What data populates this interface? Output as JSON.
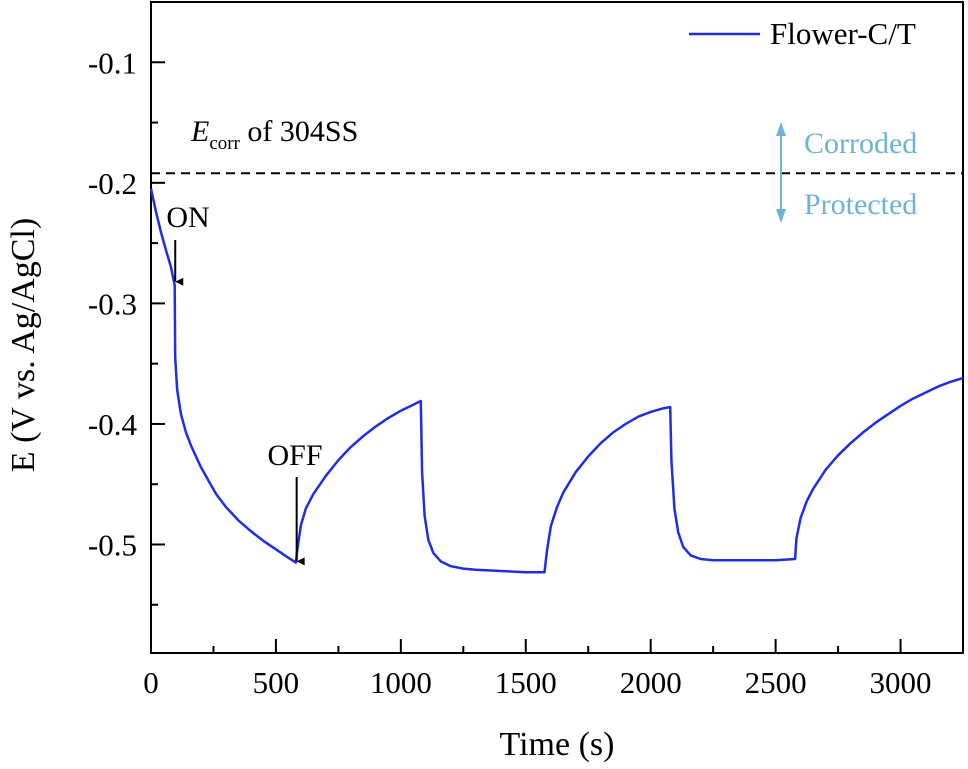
{
  "chart_data": {
    "type": "line",
    "title": "",
    "xlabel": "Time (s)",
    "ylabel": "E (V vs. Ag/AgCl)",
    "xlim": [
      0,
      3250
    ],
    "ylim": [
      -0.59,
      -0.05
    ],
    "x_ticks": [
      0,
      500,
      1000,
      1500,
      2000,
      2500,
      3000
    ],
    "x_tick_labels": [
      "0",
      "500",
      "1000",
      "1500",
      "2000",
      "2500",
      "3000"
    ],
    "y_ticks": [
      -0.1,
      -0.2,
      -0.3,
      -0.4,
      -0.5
    ],
    "y_tick_labels": [
      "-0.1",
      "-0.2",
      "-0.3",
      "-0.4",
      "-0.5"
    ],
    "legend": {
      "position": "top-right",
      "entries": [
        "Flower-C/T"
      ]
    },
    "series": [
      {
        "name": "Flower-C/T",
        "color": "#1f2ee0",
        "points": [
          [
            0,
            -0.205
          ],
          [
            20,
            -0.224
          ],
          [
            40,
            -0.241
          ],
          [
            60,
            -0.256
          ],
          [
            80,
            -0.27
          ],
          [
            95,
            -0.285
          ],
          [
            97,
            -0.345
          ],
          [
            105,
            -0.372
          ],
          [
            120,
            -0.392
          ],
          [
            140,
            -0.407
          ],
          [
            160,
            -0.418
          ],
          [
            180,
            -0.427
          ],
          [
            200,
            -0.436
          ],
          [
            230,
            -0.447
          ],
          [
            260,
            -0.458
          ],
          [
            300,
            -0.469
          ],
          [
            350,
            -0.48
          ],
          [
            400,
            -0.489
          ],
          [
            450,
            -0.497
          ],
          [
            500,
            -0.504
          ],
          [
            550,
            -0.511
          ],
          [
            580,
            -0.515
          ],
          [
            585,
            -0.505
          ],
          [
            600,
            -0.484
          ],
          [
            620,
            -0.47
          ],
          [
            650,
            -0.458
          ],
          [
            700,
            -0.443
          ],
          [
            750,
            -0.43
          ],
          [
            800,
            -0.419
          ],
          [
            850,
            -0.41
          ],
          [
            900,
            -0.402
          ],
          [
            950,
            -0.395
          ],
          [
            1000,
            -0.389
          ],
          [
            1050,
            -0.384
          ],
          [
            1080,
            -0.381
          ],
          [
            1085,
            -0.44
          ],
          [
            1095,
            -0.476
          ],
          [
            1110,
            -0.496
          ],
          [
            1130,
            -0.507
          ],
          [
            1160,
            -0.514
          ],
          [
            1200,
            -0.518
          ],
          [
            1250,
            -0.52
          ],
          [
            1300,
            -0.521
          ],
          [
            1400,
            -0.522
          ],
          [
            1500,
            -0.523
          ],
          [
            1575,
            -0.523
          ],
          [
            1585,
            -0.505
          ],
          [
            1600,
            -0.485
          ],
          [
            1625,
            -0.469
          ],
          [
            1650,
            -0.457
          ],
          [
            1700,
            -0.44
          ],
          [
            1750,
            -0.427
          ],
          [
            1800,
            -0.416
          ],
          [
            1850,
            -0.407
          ],
          [
            1900,
            -0.4
          ],
          [
            1950,
            -0.394
          ],
          [
            2000,
            -0.39
          ],
          [
            2050,
            -0.387
          ],
          [
            2078,
            -0.386
          ],
          [
            2083,
            -0.43
          ],
          [
            2095,
            -0.47
          ],
          [
            2110,
            -0.49
          ],
          [
            2130,
            -0.502
          ],
          [
            2160,
            -0.509
          ],
          [
            2200,
            -0.512
          ],
          [
            2250,
            -0.513
          ],
          [
            2300,
            -0.513
          ],
          [
            2400,
            -0.513
          ],
          [
            2500,
            -0.513
          ],
          [
            2578,
            -0.512
          ],
          [
            2583,
            -0.495
          ],
          [
            2600,
            -0.478
          ],
          [
            2625,
            -0.464
          ],
          [
            2650,
            -0.454
          ],
          [
            2700,
            -0.438
          ],
          [
            2750,
            -0.426
          ],
          [
            2800,
            -0.416
          ],
          [
            2850,
            -0.407
          ],
          [
            2900,
            -0.399
          ],
          [
            2950,
            -0.392
          ],
          [
            3000,
            -0.385
          ],
          [
            3050,
            -0.379
          ],
          [
            3100,
            -0.374
          ],
          [
            3150,
            -0.369
          ],
          [
            3200,
            -0.365
          ],
          [
            3250,
            -0.362
          ]
        ]
      }
    ],
    "reference_line": {
      "y": -0.192,
      "style": "dashed",
      "color": "#000000"
    },
    "annotations": {
      "ecorr": {
        "symbol": "E",
        "subscript": "corr",
        "text": " of 304SS"
      },
      "on": {
        "text": "ON",
        "x": 97,
        "y_tip": -0.282
      },
      "off": {
        "text": "OFF",
        "x": 583,
        "y_tip": -0.485
      },
      "corroded": {
        "text": "Corroded",
        "color": "#6db3d6"
      },
      "protected": {
        "text": "Protected",
        "color": "#6db3d6"
      }
    }
  }
}
